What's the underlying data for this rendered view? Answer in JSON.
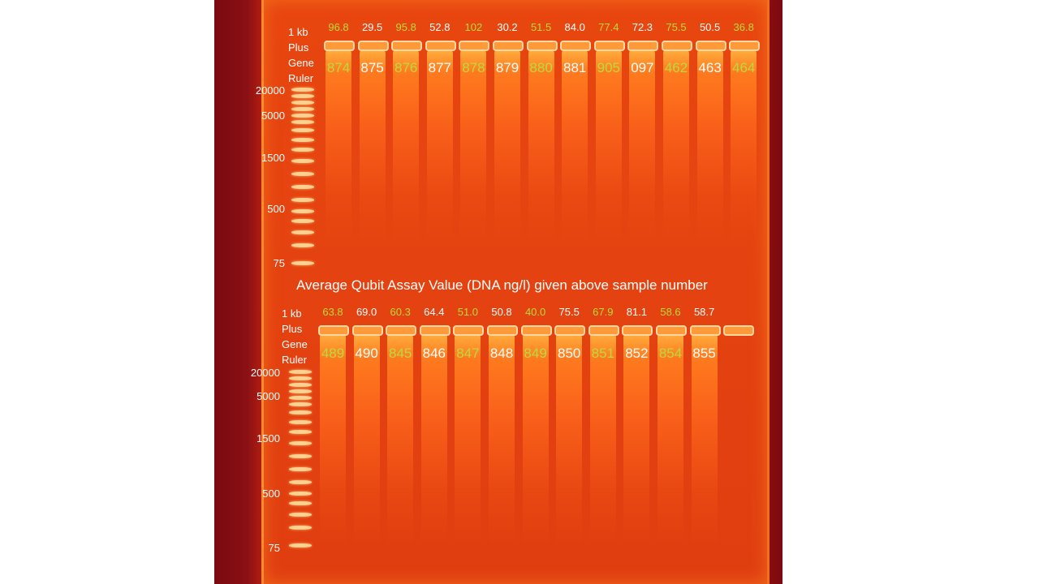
{
  "caption": "Average Qubit Assay Value (DNA ng/l) given above sample number",
  "ladder_label": [
    "1 kb",
    "Plus",
    "Gene",
    "Ruler"
  ],
  "size_markers": [
    "20000",
    "5000",
    "1500",
    "500",
    "75"
  ],
  "top_lanes": [
    {
      "conc": "96.8",
      "sample": "874",
      "color": "green"
    },
    {
      "conc": "29.5",
      "sample": "875",
      "color": "white"
    },
    {
      "conc": "95.8",
      "sample": "876",
      "color": "green"
    },
    {
      "conc": "52.8",
      "sample": "877",
      "color": "white"
    },
    {
      "conc": "102",
      "sample": "878",
      "color": "green"
    },
    {
      "conc": "30.2",
      "sample": "879",
      "color": "white"
    },
    {
      "conc": "51.5",
      "sample": "880",
      "color": "green"
    },
    {
      "conc": "84.0",
      "sample": "881",
      "color": "white"
    },
    {
      "conc": "77.4",
      "sample": "905",
      "color": "green"
    },
    {
      "conc": "72.3",
      "sample": "097",
      "color": "white"
    },
    {
      "conc": "75.5",
      "sample": "462",
      "color": "green"
    },
    {
      "conc": "50.5",
      "sample": "463",
      "color": "white"
    },
    {
      "conc": "36.8",
      "sample": "464",
      "color": "green"
    }
  ],
  "bottom_lanes": [
    {
      "conc": "63.8",
      "sample": "489",
      "color": "green"
    },
    {
      "conc": "69.0",
      "sample": "490",
      "color": "white"
    },
    {
      "conc": "60.3",
      "sample": "845",
      "color": "green"
    },
    {
      "conc": "64.4",
      "sample": "846",
      "color": "white"
    },
    {
      "conc": "51.0",
      "sample": "847",
      "color": "green"
    },
    {
      "conc": "50.8",
      "sample": "848",
      "color": "white"
    },
    {
      "conc": "40.0",
      "sample": "849",
      "color": "green"
    },
    {
      "conc": "75.5",
      "sample": "850",
      "color": "white"
    },
    {
      "conc": "67.9",
      "sample": "851",
      "color": "green"
    },
    {
      "conc": "81.1",
      "sample": "852",
      "color": "white"
    },
    {
      "conc": "58.6",
      "sample": "854",
      "color": "green"
    },
    {
      "conc": "58.7",
      "sample": "855",
      "color": "white"
    },
    {
      "conc": "",
      "sample": "",
      "color": "green"
    }
  ]
}
